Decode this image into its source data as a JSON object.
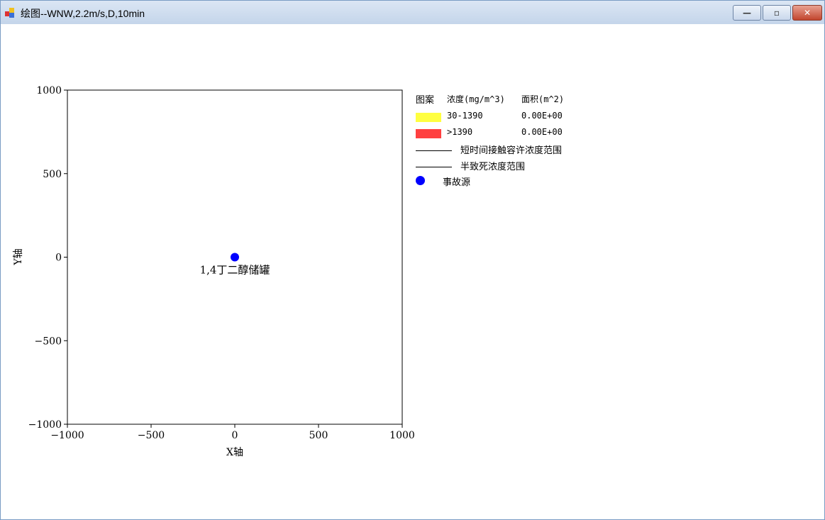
{
  "window": {
    "title": "绘图--WNW,2.2m/s,D,10min",
    "minimize_icon": "minimize-icon",
    "maximize_icon": "restore-icon",
    "close_icon": "close-icon"
  },
  "chart_data": {
    "type": "scatter",
    "xlabel": "X轴",
    "ylabel": "Y轴",
    "xlim": [
      -1000,
      1000
    ],
    "ylim": [
      -1000,
      1000
    ],
    "xticks": [
      "−1000",
      "−500",
      "0",
      "500",
      "1000"
    ],
    "yticks": [
      "1000",
      "500",
      "0",
      "−500",
      "−1000"
    ],
    "grid": false,
    "points": [
      {
        "x": 0,
        "y": 0,
        "label": "1,4丁二醇储罐",
        "color": "#0000ff"
      }
    ],
    "legend": {
      "placement": "right",
      "header": {
        "pattern": "图案",
        "concentration": "浓度(mg/m^3)",
        "area": "面积(m^2)"
      },
      "bands": [
        {
          "range": "30-1390",
          "area": "0.00E+00",
          "color": "#ffff40"
        },
        {
          "range": ">1390",
          "area": "0.00E+00",
          "color": "#ff4040"
        }
      ],
      "lines": [
        {
          "label": "短时间接触容许浓度范围"
        },
        {
          "label": "半致死浓度范围"
        }
      ],
      "source": {
        "label": "事故源",
        "color": "#0000ff"
      }
    }
  }
}
